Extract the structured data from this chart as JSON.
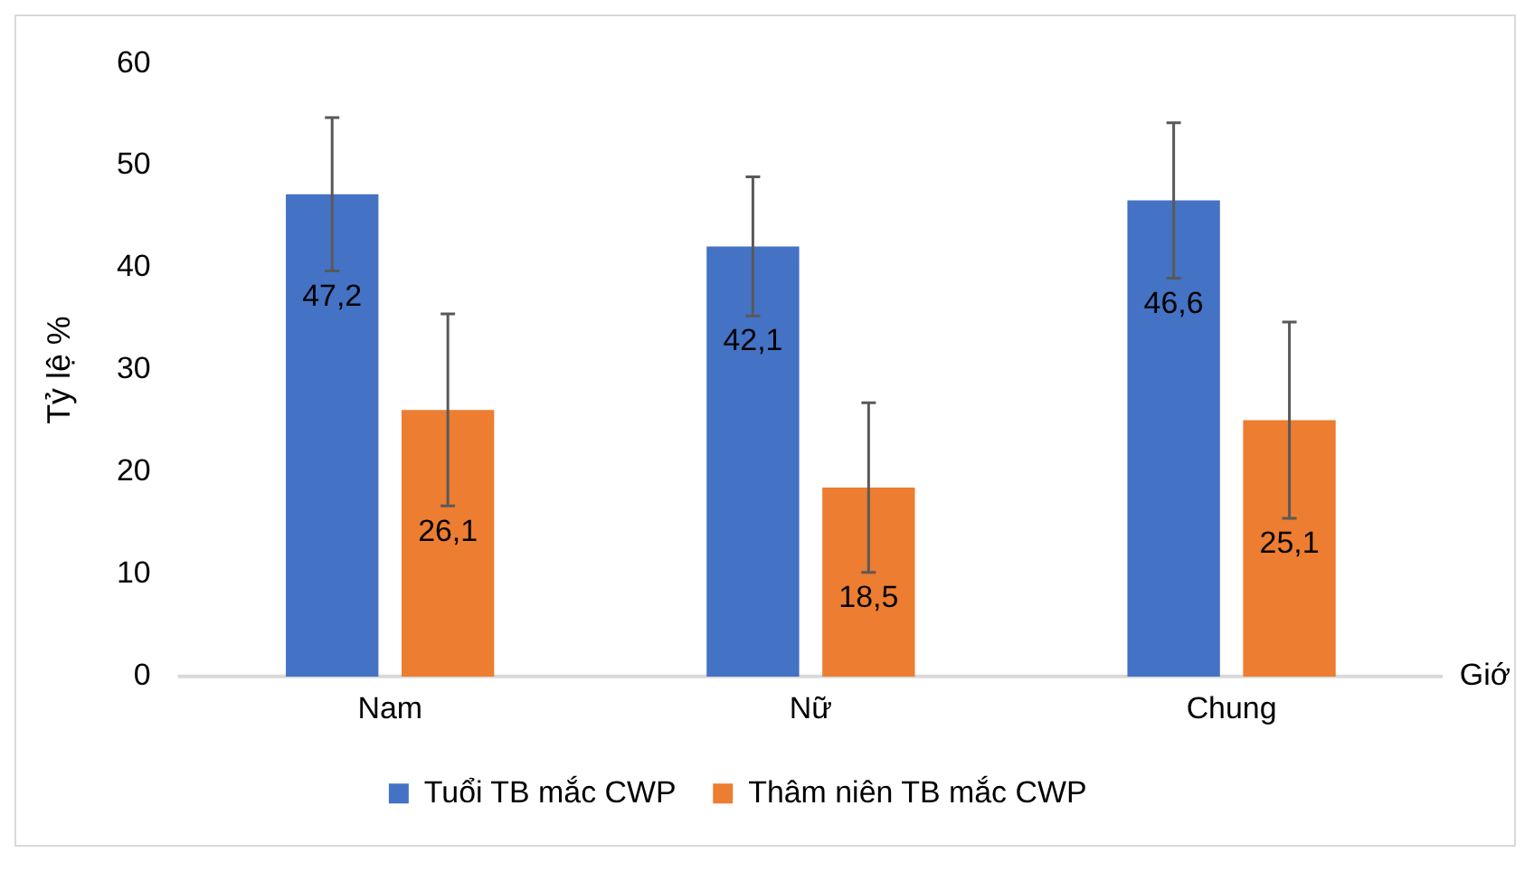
{
  "chart_data": {
    "type": "bar",
    "ylabel": "Tỷ lệ %",
    "xlabel": "Giớ",
    "categories": [
      "Nam",
      "Nữ",
      "Chung"
    ],
    "series": [
      {
        "name": "Tuổi TB mắc CWP",
        "color": "#4472c4",
        "values": [
          47.2,
          42.1,
          46.6
        ],
        "value_labels": [
          "47,2",
          "42,1",
          "46,6"
        ],
        "errors": [
          7.5,
          6.8,
          7.6
        ]
      },
      {
        "name": "Thâm niên TB mắc CWP",
        "color": "#ed7d31",
        "values": [
          26.1,
          18.5,
          25.1
        ],
        "value_labels": [
          "26,1",
          "18,5",
          "25,1"
        ],
        "errors": [
          9.4,
          8.3,
          9.6
        ]
      }
    ],
    "ylim": [
      0,
      60
    ],
    "yticks": [
      0,
      10,
      20,
      30,
      40,
      50,
      60
    ],
    "grid": false,
    "legend": "bottom"
  }
}
